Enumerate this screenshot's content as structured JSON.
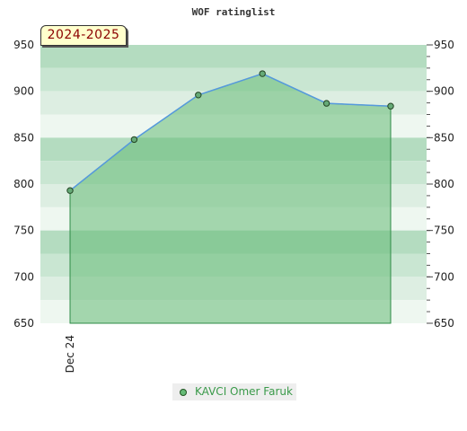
{
  "chart_data": {
    "type": "area",
    "title": "WOF ratinglist",
    "badge": "2024-2025",
    "categories": [
      "Dec 24",
      "",
      "",
      "",
      "",
      ""
    ],
    "series": [
      {
        "name": "KAVCI Omer Faruk",
        "values": [
          793,
          848,
          896,
          919,
          887,
          884
        ]
      }
    ],
    "ylim": [
      650,
      950
    ],
    "yticks": [
      650,
      700,
      750,
      800,
      850,
      900,
      950
    ],
    "colors": {
      "line": "#5599dd",
      "fill": "#66bb77",
      "marker": "#66aa77",
      "legend_text": "#3a9a4a",
      "badge_text": "#8b0000",
      "badge_bg": "#ffffcc"
    },
    "legend_position": "bottom-center",
    "grid": true
  }
}
